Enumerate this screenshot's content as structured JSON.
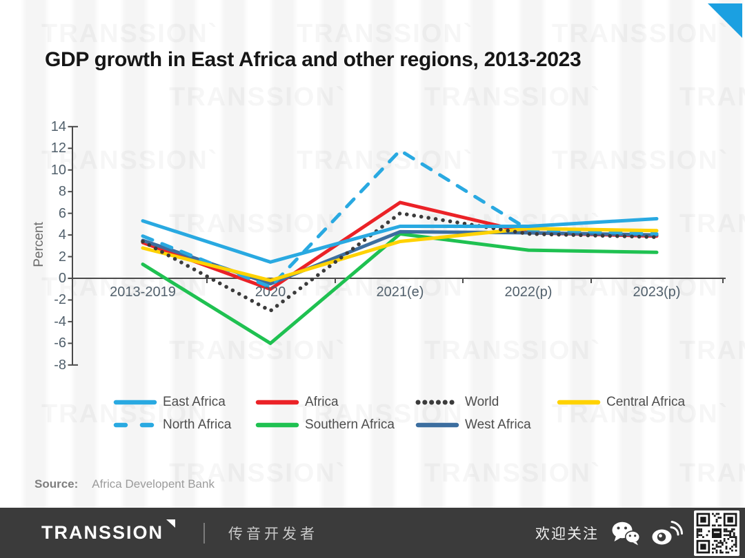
{
  "title": "GDP growth in East Africa and other regions, 2013-2023",
  "watermark": {
    "text": "TRANSSION`"
  },
  "accent": {
    "corner_triangle": "#1BA0E1"
  },
  "chart_data": {
    "type": "line",
    "title": "GDP growth in East Africa and other regions, 2013-2023",
    "xlabel": "",
    "ylabel": "Percent",
    "ylim": [
      -8,
      14
    ],
    "y_ticks": [
      14,
      12,
      10,
      8,
      6,
      4,
      2,
      0,
      -2,
      -4,
      -6,
      -8
    ],
    "grid": false,
    "legend_position": "bottom",
    "categories": [
      "2013-2019",
      "2020",
      "2021(e)",
      "2022(p)",
      "2023(p)"
    ],
    "series": [
      {
        "name": "East Africa",
        "color": "#29A9E1",
        "style": "solid",
        "values": [
          5.3,
          1.5,
          4.8,
          4.8,
          5.5
        ]
      },
      {
        "name": "Africa",
        "color": "#EB2227",
        "style": "solid",
        "values": [
          3.3,
          -1.0,
          7.0,
          4.2,
          3.9
        ]
      },
      {
        "name": "World",
        "color": "#3B3B3B",
        "style": "dotted",
        "values": [
          3.4,
          -3.0,
          6.0,
          4.1,
          3.8
        ]
      },
      {
        "name": "Central Africa",
        "color": "#FFD200",
        "style": "solid",
        "values": [
          2.8,
          -0.2,
          3.4,
          4.6,
          4.4
        ]
      },
      {
        "name": "North Africa",
        "color": "#29A9E1",
        "style": "dashed",
        "values": [
          3.9,
          -0.8,
          11.8,
          4.5,
          4.1
        ]
      },
      {
        "name": "Southern Africa",
        "color": "#1FC151",
        "style": "solid",
        "values": [
          1.3,
          -6.0,
          4.1,
          2.6,
          2.4
        ]
      },
      {
        "name": "West Africa",
        "color": "#3C6E9F",
        "style": "solid",
        "values": [
          3.5,
          -0.5,
          4.3,
          4.2,
          4.0
        ]
      }
    ]
  },
  "source": {
    "label": "Source:",
    "value": "Africa Developent Bank"
  },
  "footer": {
    "logo": "TRANSSION",
    "subtitle": "传音开发者",
    "follow_text": "欢迎关注",
    "background": "#3B3B3B"
  }
}
